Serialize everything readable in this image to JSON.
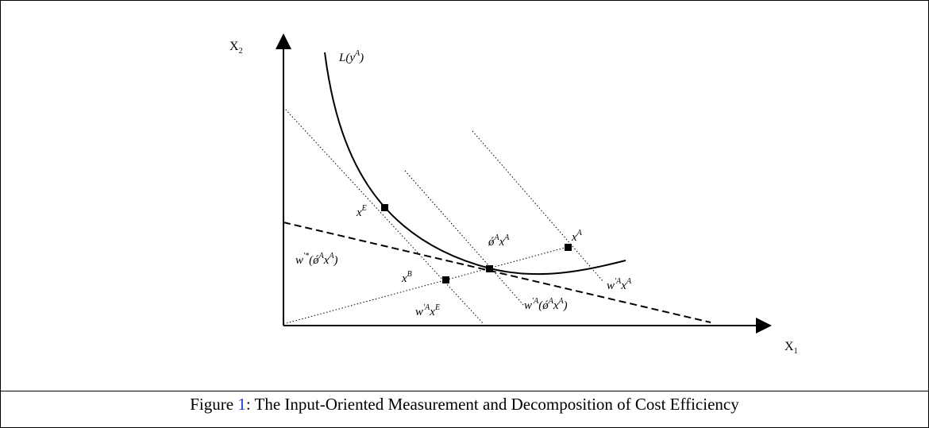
{
  "axes": {
    "y_label_main": "X",
    "y_label_sub": "2",
    "x_label_main": "X",
    "x_label_sub": "1"
  },
  "labels": {
    "isoquant": {
      "pre": "L(y",
      "sup": "A",
      "post": ")"
    },
    "xE": {
      "main": "x",
      "sup": "E"
    },
    "xA": {
      "main": "x",
      "sup": "A"
    },
    "xB": {
      "main": "x",
      "sup": "B"
    },
    "theta_xA": {
      "a": "ǿ",
      "b": "A",
      "c": "x",
      "d": "A"
    },
    "w_star": {
      "a": "w",
      "b": "ʹ*",
      "c": "(",
      "d": "ǿ",
      "e": "A",
      "f": "x",
      "g": "A",
      "h": ")"
    },
    "w_xE": {
      "a": "w",
      "b": "ʹA",
      "c": "x",
      "d": "E"
    },
    "w_theta": {
      "a": "w",
      "b": "ʹA",
      "c": "(",
      "d": "ǿ",
      "e": "A",
      "f": "x",
      "g": "A",
      "h": ")"
    },
    "w_xA": {
      "a": "w",
      "b": "ʹA",
      "c": "x",
      "d": "A"
    }
  },
  "caption": {
    "prefix": "Figure ",
    "number": "1",
    "text": ":  The Input-Oriented Measurement and Decomposition of Cost Efficiency"
  },
  "colors": {
    "line": "#000000",
    "link": "#1f3fcf"
  }
}
